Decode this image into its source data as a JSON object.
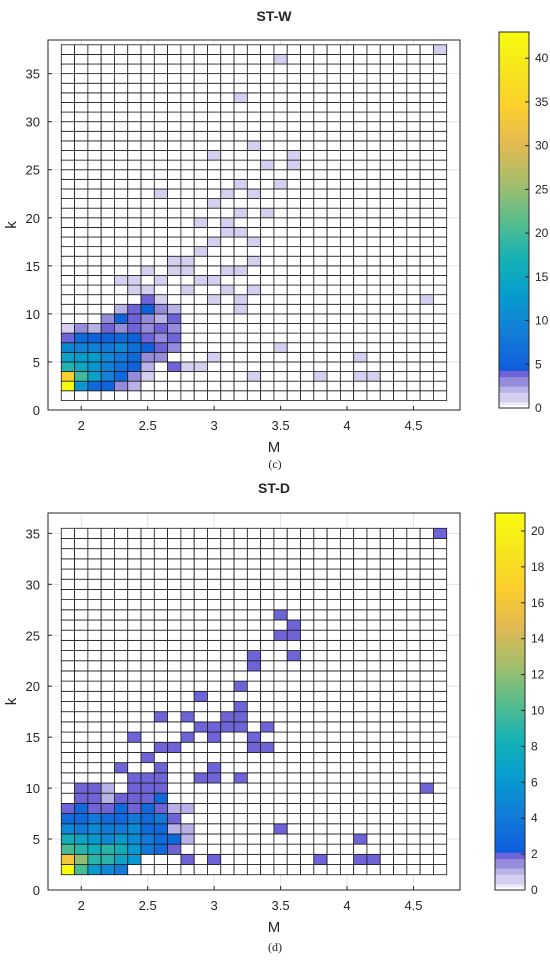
{
  "chart_data": [
    {
      "type": "heatmap",
      "title": "ST-W",
      "caption": "(c)",
      "xlabel": "M",
      "ylabel": "k",
      "x_ticks": [
        "2",
        "2.5",
        "3",
        "3.5",
        "4",
        "4.5"
      ],
      "y_ticks": [
        "0",
        "5",
        "10",
        "15",
        "20",
        "25",
        "30",
        "35"
      ],
      "xlim": [
        1.75,
        4.85
      ],
      "ylim": [
        0,
        38.5
      ],
      "grid_x_range": [
        1.85,
        4.75
      ],
      "grid_y_range": [
        1,
        38
      ],
      "grid_rows": 37,
      "grid_cols": 29,
      "colorbar": {
        "min": 0,
        "max": 43,
        "ticks": [
          "0",
          "5",
          "10",
          "15",
          "20",
          "25",
          "30",
          "35",
          "40"
        ]
      },
      "colormap": "parula",
      "cells": [
        [
          1.9,
          2,
          43
        ],
        [
          2.0,
          2,
          12
        ],
        [
          2.1,
          2,
          6
        ],
        [
          2.2,
          2,
          5
        ],
        [
          2.3,
          2,
          3
        ],
        [
          2.4,
          2,
          2
        ],
        [
          1.9,
          3,
          35
        ],
        [
          2.0,
          3,
          20
        ],
        [
          2.1,
          3,
          14
        ],
        [
          2.2,
          3,
          9
        ],
        [
          2.3,
          3,
          6
        ],
        [
          2.4,
          3,
          3
        ],
        [
          2.5,
          3,
          1
        ],
        [
          1.9,
          4,
          18
        ],
        [
          2.0,
          4,
          15
        ],
        [
          2.1,
          4,
          12
        ],
        [
          2.2,
          4,
          9
        ],
        [
          2.3,
          4,
          7
        ],
        [
          2.4,
          4,
          5
        ],
        [
          2.5,
          4,
          2
        ],
        [
          2.7,
          4,
          4
        ],
        [
          1.9,
          5,
          14
        ],
        [
          2.0,
          5,
          13
        ],
        [
          2.1,
          5,
          13
        ],
        [
          2.2,
          5,
          10
        ],
        [
          2.3,
          5,
          8
        ],
        [
          2.4,
          5,
          6
        ],
        [
          2.5,
          5,
          3
        ],
        [
          2.6,
          5,
          3
        ],
        [
          1.9,
          6,
          10
        ],
        [
          2.0,
          6,
          9
        ],
        [
          2.1,
          6,
          9
        ],
        [
          2.2,
          6,
          8
        ],
        [
          2.3,
          6,
          10
        ],
        [
          2.4,
          6,
          7
        ],
        [
          2.5,
          6,
          5
        ],
        [
          2.6,
          6,
          4
        ],
        [
          2.7,
          6,
          3
        ],
        [
          1.9,
          7,
          4
        ],
        [
          2.0,
          7,
          6
        ],
        [
          2.1,
          7,
          5
        ],
        [
          2.2,
          7,
          5
        ],
        [
          2.3,
          7,
          6
        ],
        [
          2.4,
          7,
          5
        ],
        [
          2.5,
          7,
          4
        ],
        [
          2.6,
          7,
          3
        ],
        [
          2.7,
          7,
          4
        ],
        [
          1.9,
          8,
          1
        ],
        [
          2.0,
          8,
          3
        ],
        [
          2.1,
          8,
          2
        ],
        [
          2.2,
          8,
          4
        ],
        [
          2.3,
          8,
          3
        ],
        [
          2.4,
          8,
          4
        ],
        [
          2.5,
          8,
          3
        ],
        [
          2.6,
          8,
          4
        ],
        [
          2.7,
          8,
          3
        ],
        [
          2.2,
          9,
          3
        ],
        [
          2.3,
          9,
          5
        ],
        [
          2.4,
          9,
          4
        ],
        [
          2.5,
          9,
          3
        ],
        [
          2.6,
          9,
          2
        ],
        [
          2.7,
          9,
          4
        ],
        [
          2.3,
          10,
          2
        ],
        [
          2.4,
          10,
          4
        ],
        [
          2.5,
          10,
          5
        ],
        [
          2.6,
          10,
          3
        ],
        [
          2.7,
          10,
          2
        ],
        [
          2.5,
          11,
          4
        ],
        [
          2.6,
          11,
          1
        ],
        [
          2.8,
          4,
          1
        ],
        [
          2.9,
          4,
          1
        ],
        [
          3.0,
          5,
          1
        ],
        [
          3.3,
          3,
          1
        ],
        [
          3.5,
          6,
          1
        ],
        [
          3.8,
          3,
          1
        ],
        [
          4.1,
          3,
          1
        ],
        [
          4.2,
          3,
          1
        ],
        [
          4.1,
          5,
          1
        ],
        [
          4.6,
          11,
          1
        ],
        [
          4.7,
          37,
          1
        ],
        [
          2.3,
          13,
          1
        ],
        [
          2.4,
          12,
          1
        ],
        [
          2.5,
          12,
          1
        ],
        [
          2.6,
          13,
          1
        ],
        [
          2.7,
          14,
          1
        ],
        [
          2.8,
          14,
          1
        ],
        [
          2.7,
          15,
          1
        ],
        [
          2.8,
          15,
          1
        ],
        [
          2.9,
          16,
          1
        ],
        [
          3.0,
          17,
          1
        ],
        [
          3.1,
          18,
          1
        ],
        [
          3.2,
          18,
          1
        ],
        [
          2.9,
          19,
          1
        ],
        [
          3.1,
          19,
          1
        ],
        [
          3.3,
          17,
          1
        ],
        [
          3.0,
          21,
          1
        ],
        [
          3.2,
          20,
          1
        ],
        [
          3.4,
          20,
          1
        ],
        [
          3.1,
          22,
          1
        ],
        [
          3.3,
          22,
          1
        ],
        [
          3.2,
          23,
          1
        ],
        [
          3.5,
          23,
          1
        ],
        [
          3.4,
          25,
          1
        ],
        [
          3.6,
          25,
          1
        ],
        [
          3.6,
          26,
          1
        ],
        [
          3.3,
          27,
          1
        ],
        [
          3.0,
          26,
          1
        ],
        [
          3.2,
          32,
          1
        ],
        [
          3.5,
          36,
          1
        ],
        [
          2.6,
          22,
          1
        ],
        [
          3.0,
          13,
          1
        ],
        [
          3.1,
          14,
          1
        ],
        [
          3.2,
          14,
          1
        ],
        [
          3.3,
          15,
          1
        ],
        [
          2.9,
          13,
          1
        ],
        [
          2.8,
          12,
          1
        ],
        [
          3.1,
          12,
          1
        ],
        [
          3.3,
          12,
          1
        ],
        [
          3.2,
          11,
          1
        ],
        [
          3.0,
          11,
          1
        ],
        [
          3.2,
          10,
          1
        ],
        [
          2.5,
          14,
          1
        ],
        [
          2.4,
          13,
          1
        ]
      ]
    },
    {
      "type": "heatmap",
      "title": "ST-D",
      "caption": "(d)",
      "xlabel": "M",
      "ylabel": "k",
      "x_ticks": [
        "2",
        "2.5",
        "3",
        "3.5",
        "4",
        "4.5"
      ],
      "y_ticks": [
        "0",
        "5",
        "10",
        "15",
        "20",
        "25",
        "30",
        "35"
      ],
      "xlim": [
        1.75,
        4.85
      ],
      "ylim": [
        0,
        37
      ],
      "grid_x_range": [
        1.85,
        4.75
      ],
      "grid_y_range": [
        1.5,
        35.5
      ],
      "grid_rows": 34,
      "grid_cols": 29,
      "colorbar": {
        "min": 0,
        "max": 21,
        "ticks": [
          "0",
          "2",
          "4",
          "6",
          "8",
          "10",
          "12",
          "14",
          "16",
          "18",
          "20"
        ]
      },
      "colormap": "parula",
      "cells": [
        [
          1.9,
          2,
          21
        ],
        [
          2.0,
          2,
          10
        ],
        [
          2.1,
          2,
          6
        ],
        [
          2.2,
          2,
          5
        ],
        [
          2.3,
          2,
          4
        ],
        [
          1.9,
          3,
          16
        ],
        [
          2.0,
          3,
          12
        ],
        [
          2.1,
          3,
          9
        ],
        [
          2.2,
          3,
          9
        ],
        [
          2.3,
          3,
          7
        ],
        [
          2.4,
          3,
          6
        ],
        [
          1.9,
          4,
          10
        ],
        [
          2.0,
          4,
          9
        ],
        [
          2.1,
          4,
          8
        ],
        [
          2.2,
          4,
          9
        ],
        [
          2.3,
          4,
          8
        ],
        [
          2.4,
          4,
          6
        ],
        [
          2.5,
          4,
          4
        ],
        [
          2.6,
          4,
          3
        ],
        [
          2.7,
          4,
          2
        ],
        [
          1.9,
          5,
          8
        ],
        [
          2.0,
          5,
          7
        ],
        [
          2.1,
          5,
          6
        ],
        [
          2.2,
          5,
          5
        ],
        [
          2.3,
          5,
          6
        ],
        [
          2.4,
          5,
          5
        ],
        [
          2.5,
          5,
          4
        ],
        [
          2.6,
          5,
          3
        ],
        [
          2.7,
          5,
          3
        ],
        [
          1.9,
          6,
          5
        ],
        [
          2.0,
          6,
          4
        ],
        [
          2.1,
          6,
          5
        ],
        [
          2.2,
          6,
          4
        ],
        [
          2.3,
          6,
          4
        ],
        [
          2.4,
          6,
          5
        ],
        [
          2.5,
          6,
          3
        ],
        [
          2.6,
          6,
          3
        ],
        [
          2.7,
          6,
          2
        ],
        [
          1.9,
          7,
          3
        ],
        [
          2.0,
          7,
          3
        ],
        [
          2.1,
          7,
          4
        ],
        [
          2.2,
          7,
          3
        ],
        [
          2.3,
          7,
          3
        ],
        [
          2.4,
          7,
          4
        ],
        [
          2.5,
          7,
          3
        ],
        [
          2.6,
          7,
          4
        ],
        [
          2.7,
          7,
          2
        ],
        [
          1.9,
          8,
          2
        ],
        [
          2.0,
          8,
          3
        ],
        [
          2.1,
          8,
          2
        ],
        [
          2.2,
          8,
          2
        ],
        [
          2.3,
          8,
          3
        ],
        [
          2.4,
          8,
          2
        ],
        [
          2.5,
          8,
          3
        ],
        [
          2.6,
          8,
          2
        ],
        [
          2.0,
          9,
          2
        ],
        [
          2.1,
          9,
          2
        ],
        [
          2.3,
          9,
          2
        ],
        [
          2.4,
          9,
          2
        ],
        [
          2.5,
          9,
          2
        ],
        [
          2.6,
          9,
          3
        ],
        [
          2.0,
          10,
          2
        ],
        [
          2.1,
          10,
          2
        ],
        [
          2.4,
          10,
          2
        ],
        [
          2.5,
          10,
          2
        ],
        [
          2.6,
          10,
          2
        ],
        [
          2.4,
          11,
          2
        ],
        [
          2.5,
          11,
          2
        ],
        [
          2.6,
          11,
          2
        ],
        [
          2.3,
          12,
          2
        ],
        [
          2.6,
          12,
          2
        ],
        [
          2.5,
          13,
          2
        ],
        [
          2.6,
          14,
          2
        ],
        [
          2.7,
          14,
          2
        ],
        [
          2.4,
          15,
          2
        ],
        [
          2.8,
          15,
          2
        ],
        [
          2.6,
          17,
          2
        ],
        [
          2.8,
          17,
          2
        ],
        [
          2.9,
          16,
          2
        ],
        [
          2.9,
          19,
          2
        ],
        [
          3.0,
          16,
          2
        ],
        [
          3.0,
          15,
          2
        ],
        [
          3.1,
          17,
          2
        ],
        [
          3.2,
          16,
          2
        ],
        [
          3.2,
          17,
          2
        ],
        [
          3.1,
          16,
          2
        ],
        [
          3.3,
          15,
          2
        ],
        [
          3.4,
          14,
          2
        ],
        [
          3.4,
          16,
          2
        ],
        [
          3.3,
          14,
          2
        ],
        [
          3.2,
          18,
          2
        ],
        [
          3.2,
          20,
          2
        ],
        [
          3.3,
          22,
          2
        ],
        [
          3.3,
          23,
          2
        ],
        [
          3.5,
          25,
          2
        ],
        [
          3.5,
          27,
          2
        ],
        [
          3.6,
          25,
          2
        ],
        [
          3.6,
          26,
          2
        ],
        [
          3.6,
          23,
          2
        ],
        [
          2.8,
          3,
          2
        ],
        [
          3.0,
          3,
          2
        ],
        [
          2.9,
          11,
          2
        ],
        [
          3.0,
          12,
          2
        ],
        [
          3.0,
          11,
          2
        ],
        [
          3.2,
          11,
          2
        ],
        [
          3.5,
          6,
          2
        ],
        [
          3.8,
          3,
          2
        ],
        [
          4.1,
          3,
          2
        ],
        [
          4.2,
          3,
          2
        ],
        [
          4.1,
          5,
          2
        ],
        [
          4.6,
          10,
          2
        ],
        [
          4.7,
          35,
          2
        ],
        [
          2.7,
          6,
          1
        ],
        [
          2.8,
          6,
          1
        ],
        [
          2.8,
          5,
          1
        ],
        [
          2.7,
          8,
          1
        ],
        [
          2.8,
          8,
          1
        ],
        [
          2.2,
          9,
          1
        ],
        [
          2.2,
          10,
          1
        ]
      ]
    }
  ]
}
